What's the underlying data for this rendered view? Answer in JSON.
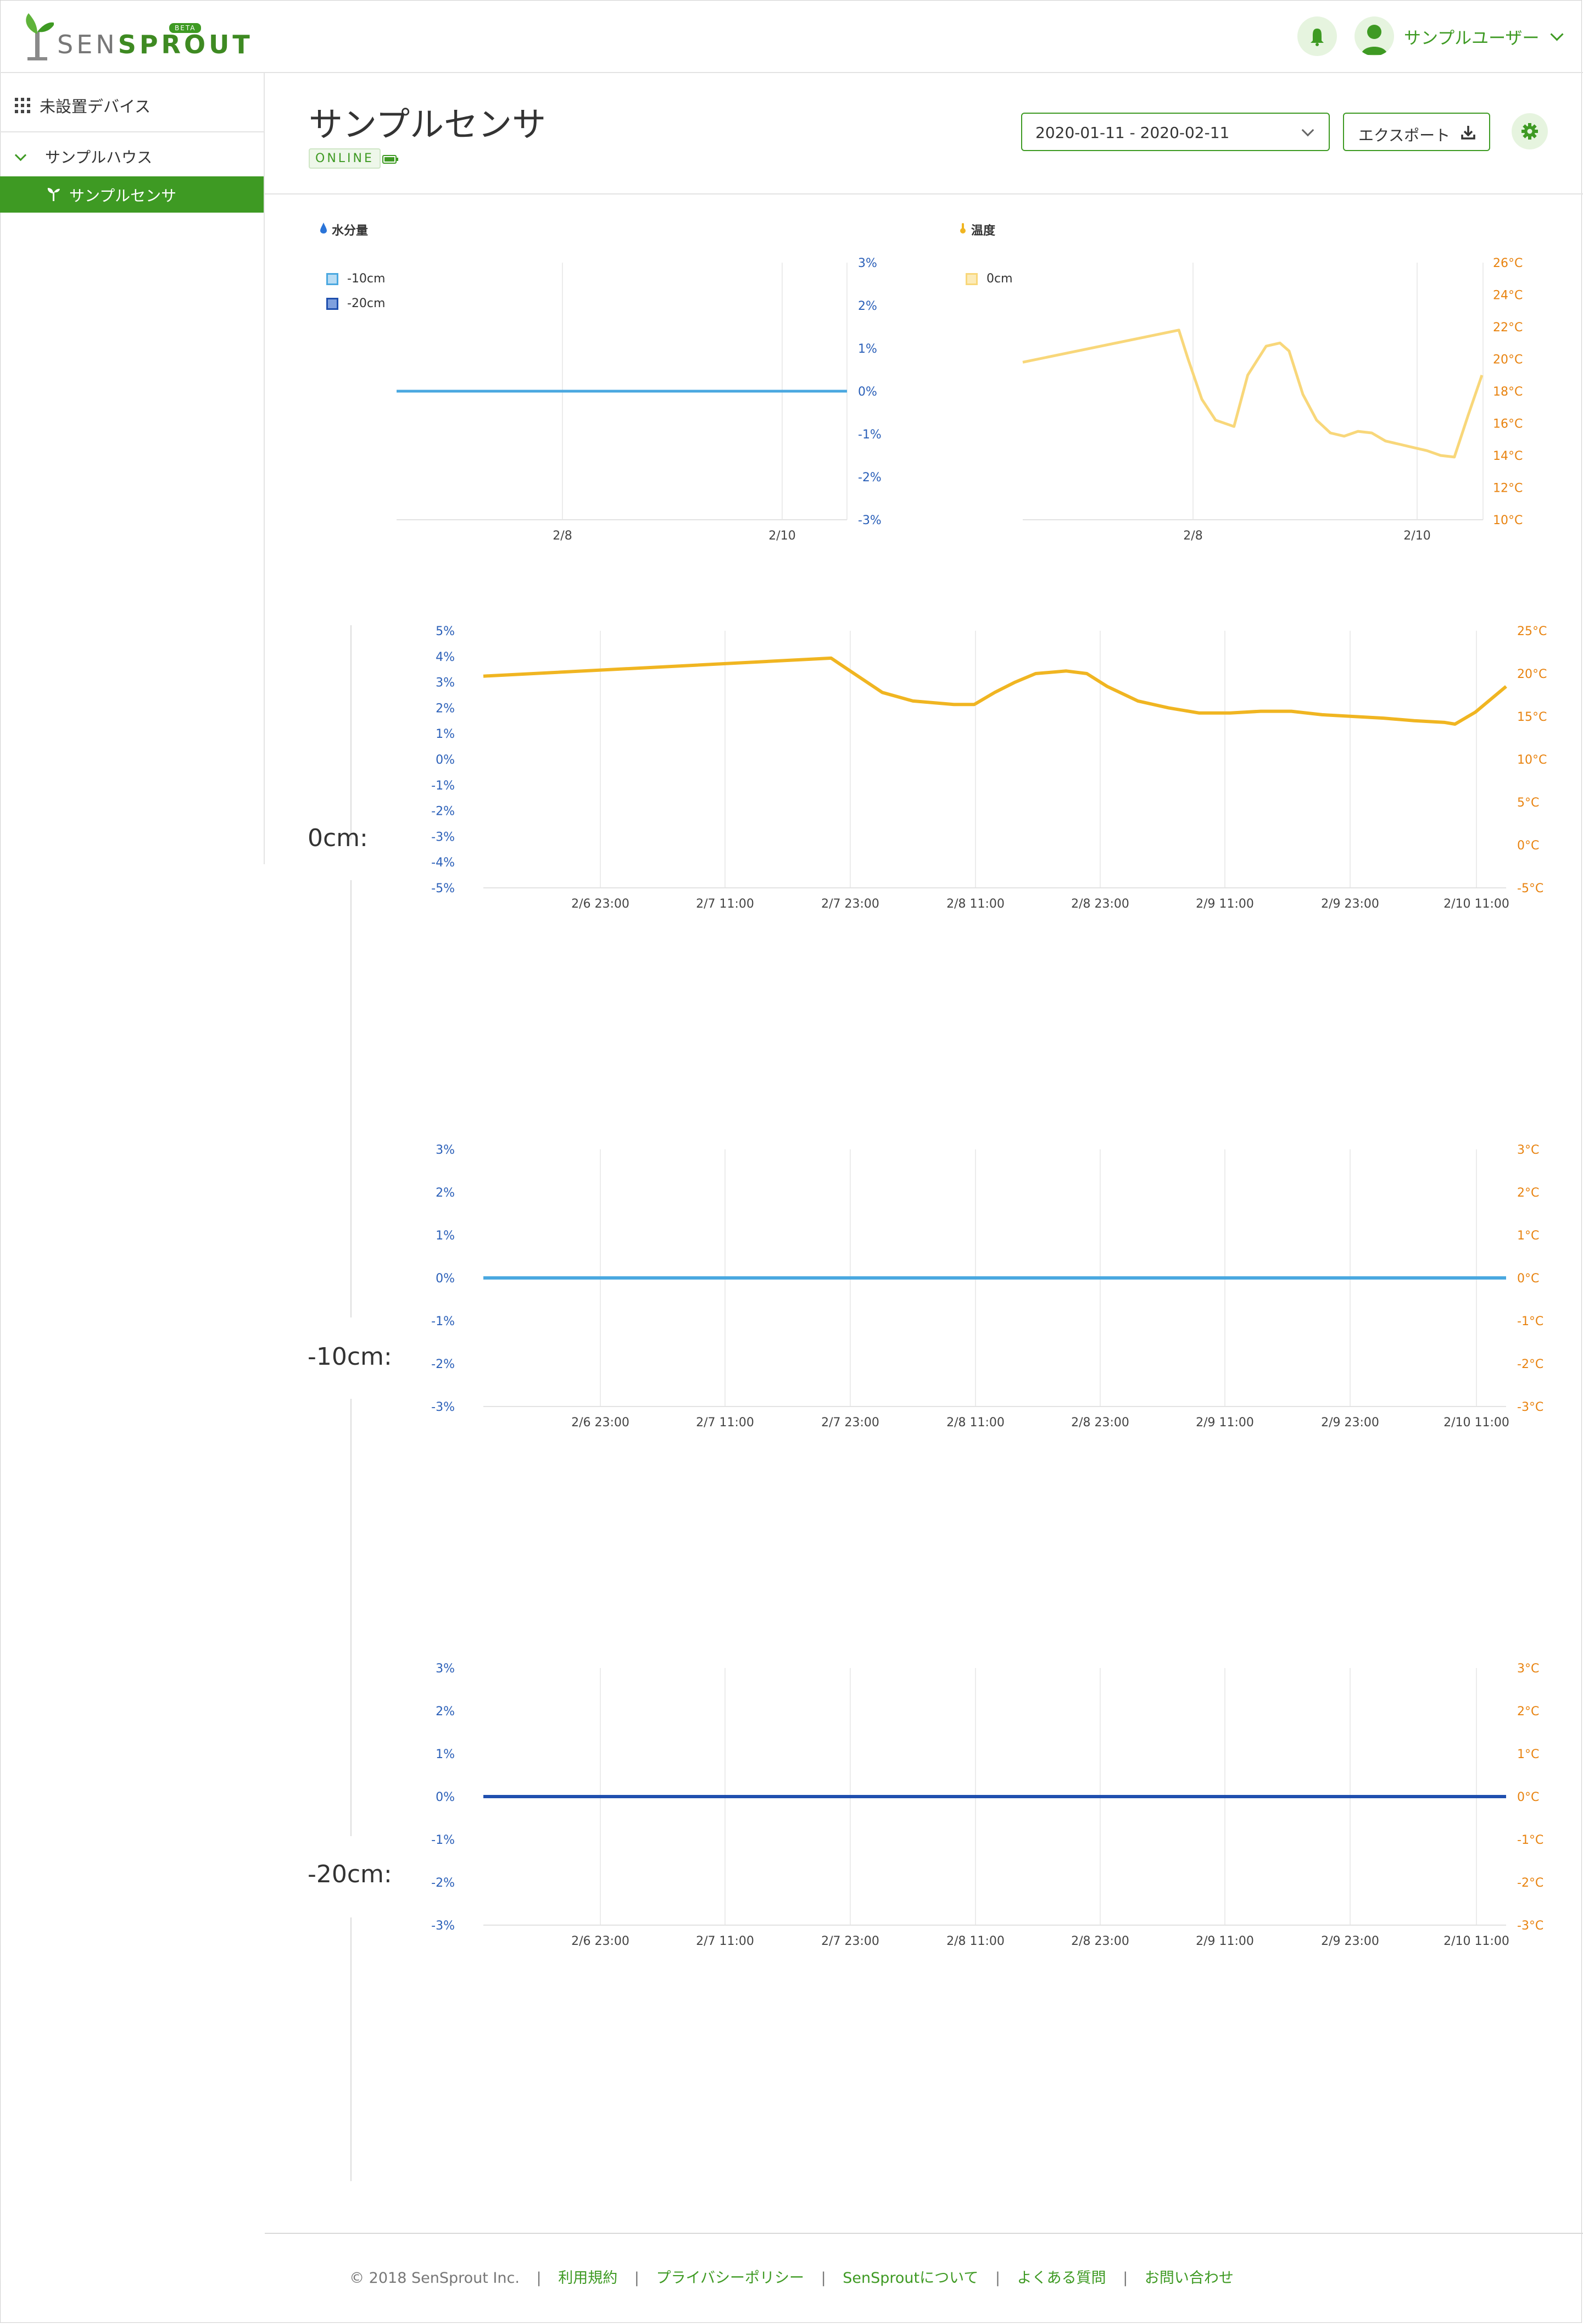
{
  "app": {
    "logo_sen": "SEN",
    "logo_sprout": "SPROUT",
    "beta": "BETA"
  },
  "header": {
    "user_name": "サンプルユーザー"
  },
  "sidebar": {
    "unset_devices": "未設置デバイス",
    "house": "サンプルハウス",
    "sensor": "サンプルセンサ"
  },
  "main": {
    "title": "サンプルセンサ",
    "status": "ONLINE",
    "date_range": "2020-01-11 - 2020-02-11",
    "export_label": "エクスポート"
  },
  "summary": {
    "moisture_title": "水分量",
    "temp_title": "温度",
    "moisture_legend": [
      "-10cm",
      "-20cm"
    ],
    "temp_legend": [
      "0cm"
    ]
  },
  "sections": {
    "s0": "0cm:",
    "s10": "-10cm:",
    "s20": "-20cm:"
  },
  "footer": {
    "copyright": "© 2018 SenSprout Inc.",
    "links": [
      "利用規約",
      "プライバシーポリシー",
      "SenSproutについて",
      "よくある質問",
      "お問い合わせ"
    ]
  },
  "colors": {
    "brand_green": "#3e9a23",
    "moisture_light_blue": "#4aa8e0",
    "moisture_dark_blue": "#1f4fae",
    "temp_yellow_light": "#f8d77a",
    "temp_yellow": "#f0b521",
    "temp_axis_orange": "#e8820e",
    "moisture_axis_blue": "#2a5fb8"
  },
  "chart_data": [
    {
      "type": "line",
      "title": "水分量",
      "x_ticks": [
        "2/8",
        "2/10"
      ],
      "y_ticks": [
        "3%",
        "2%",
        "1%",
        "0%",
        "-1%",
        "-2%",
        "-3%"
      ],
      "ylim": [
        -3,
        3
      ],
      "series": [
        {
          "name": "-10cm",
          "x": [
            0,
            1
          ],
          "values": [
            0,
            0
          ],
          "color": "#4aa8e0"
        }
      ]
    },
    {
      "type": "line",
      "title": "温度",
      "x_ticks": [
        "2/8",
        "2/10"
      ],
      "y_ticks": [
        "26°C",
        "24°C",
        "22°C",
        "20°C",
        "18°C",
        "16°C",
        "14°C",
        "12°C",
        "10°C"
      ],
      "ylim": [
        10,
        26
      ],
      "series": [
        {
          "name": "0cm",
          "x": [
            0,
            0.34,
            0.36,
            0.39,
            0.42,
            0.46,
            0.49,
            0.53,
            0.56,
            0.58,
            0.61,
            0.64,
            0.67,
            0.7,
            0.73,
            0.76,
            0.79,
            0.82,
            0.85,
            0.88,
            0.91,
            0.94,
            0.97,
            1.0
          ],
          "values": [
            19.8,
            21.8,
            20.0,
            17.5,
            16.2,
            15.8,
            19.0,
            20.8,
            21.0,
            20.5,
            17.8,
            16.2,
            15.4,
            15.2,
            15.5,
            15.4,
            14.9,
            14.7,
            14.5,
            14.3,
            14.0,
            13.9,
            16.5,
            19.0
          ],
          "color": "#f8d77a"
        }
      ]
    },
    {
      "type": "line",
      "title": "",
      "x_ticks": [
        "2/6 23:00",
        "2/7 11:00",
        "2/7 23:00",
        "2/8 11:00",
        "2/8 23:00",
        "2/9 11:00",
        "2/9 23:00",
        "2/10 11:00"
      ],
      "y_left_ticks": [
        "5%",
        "4%",
        "3%",
        "2%",
        "1%",
        "0%",
        "-1%",
        "-2%",
        "-3%",
        "-4%",
        "-5%"
      ],
      "y_right_ticks": [
        "25°C",
        "20°C",
        "15°C",
        "10°C",
        "5°C",
        "0°C",
        "-5°C"
      ],
      "ylim_right": [
        -5,
        25
      ],
      "series": [
        {
          "name": "0cm",
          "x": [
            0,
            0.34,
            0.36,
            0.39,
            0.42,
            0.46,
            0.48,
            0.5,
            0.52,
            0.54,
            0.57,
            0.59,
            0.61,
            0.64,
            0.67,
            0.7,
            0.73,
            0.76,
            0.79,
            0.82,
            0.85,
            0.88,
            0.91,
            0.94,
            0.95,
            0.97,
            1.0
          ],
          "values": [
            19.7,
            21.8,
            20.2,
            17.8,
            16.8,
            16.4,
            16.4,
            17.8,
            19.0,
            20.0,
            20.3,
            20.0,
            18.5,
            16.8,
            16.0,
            15.4,
            15.4,
            15.6,
            15.6,
            15.2,
            15.0,
            14.8,
            14.5,
            14.3,
            14.1,
            15.5,
            18.5
          ],
          "color": "#f0b521"
        }
      ]
    },
    {
      "type": "line",
      "title": "",
      "x_ticks": [
        "2/6 23:00",
        "2/7 11:00",
        "2/7 23:00",
        "2/8 11:00",
        "2/8 23:00",
        "2/9 11:00",
        "2/9 23:00",
        "2/10 11:00"
      ],
      "y_left_ticks": [
        "3%",
        "2%",
        "1%",
        "0%",
        "-1%",
        "-2%",
        "-3%"
      ],
      "y_right_ticks": [
        "3°C",
        "2°C",
        "1°C",
        "0°C",
        "-1°C",
        "-2°C",
        "-3°C"
      ],
      "ylim": [
        -3,
        3
      ],
      "series": [
        {
          "name": "-10cm",
          "x": [
            0,
            1
          ],
          "values": [
            0,
            0
          ],
          "color": "#4aa8e0"
        }
      ]
    },
    {
      "type": "line",
      "title": "",
      "x_ticks": [
        "2/6 23:00",
        "2/7 11:00",
        "2/7 23:00",
        "2/8 11:00",
        "2/8 23:00",
        "2/9 11:00",
        "2/9 23:00",
        "2/10 11:00"
      ],
      "y_left_ticks": [
        "3%",
        "2%",
        "1%",
        "0%",
        "-1%",
        "-2%",
        "-3%"
      ],
      "y_right_ticks": [
        "3°C",
        "2°C",
        "1°C",
        "0°C",
        "-1°C",
        "-2°C",
        "-3°C"
      ],
      "ylim": [
        -3,
        3
      ],
      "series": [
        {
          "name": "-20cm",
          "x": [
            0,
            1
          ],
          "values": [
            0,
            0
          ],
          "color": "#1f4fae"
        }
      ]
    }
  ]
}
